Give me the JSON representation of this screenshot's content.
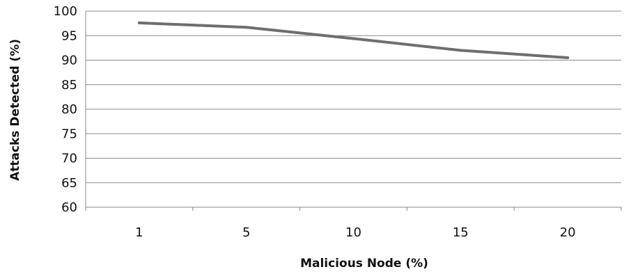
{
  "chart_data": {
    "type": "line",
    "title": "",
    "xlabel": "Malicious Node (%)",
    "ylabel": "Attacks Detected (%)",
    "categories": [
      "1",
      "5",
      "10",
      "15",
      "20"
    ],
    "series": [
      {
        "values": [
          97.6,
          96.7,
          94.4,
          92.0,
          90.5
        ]
      }
    ],
    "ylim": [
      60,
      100
    ],
    "yticks": [
      "60",
      "65",
      "70",
      "75",
      "80",
      "85",
      "90",
      "95",
      "100"
    ],
    "grid": true,
    "legend": "none",
    "colors": {
      "line": "#6e6e6e",
      "grid": "#8a8a8a",
      "axis": "#8a8a8a"
    }
  }
}
